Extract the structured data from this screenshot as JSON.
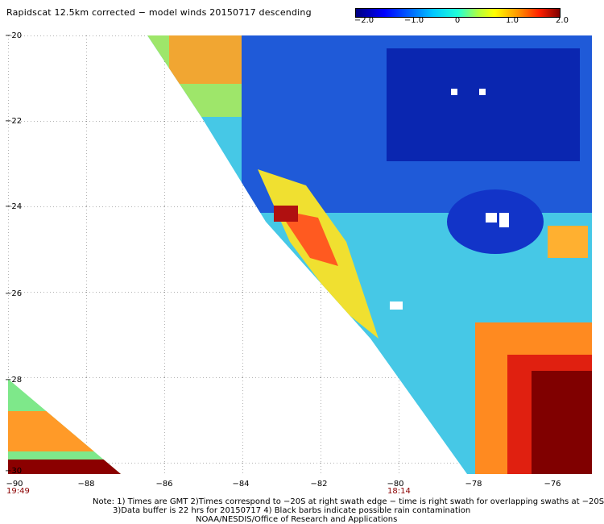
{
  "title": "Rapidscat 12.5km corrected − model winds 20150717 descending",
  "colorbar": {
    "ticks": [
      "−2.0",
      "−1.0",
      "0",
      "1.0",
      "2.0"
    ],
    "colors": [
      "#00007f",
      "#0000ff",
      "#0060ff",
      "#00c8ff",
      "#20ffd8",
      "#b0ff40",
      "#ffff00",
      "#ff9000",
      "#ff2000",
      "#7f0000"
    ]
  },
  "axes": {
    "lat_labels": [
      "−20",
      "−22",
      "−24",
      "−26",
      "−28",
      "−30"
    ],
    "lon_labels": [
      "−88",
      "−86",
      "−84",
      "−82",
      "−80",
      "−78",
      "−76"
    ],
    "lon_corner": "−90"
  },
  "time_labels": [
    "19:49",
    "18:14"
  ],
  "notes": [
    "Note: 1) Times are GMT 2)Times correspond to −20S at right swath edge − time is right swath for overlapping swaths at −20S",
    "3)Data buffer is 22 hrs for 20150717 4) Black barbs indicate possible rain contamination",
    "NOAA/NESDIS/Office of Research and Applications"
  ]
}
